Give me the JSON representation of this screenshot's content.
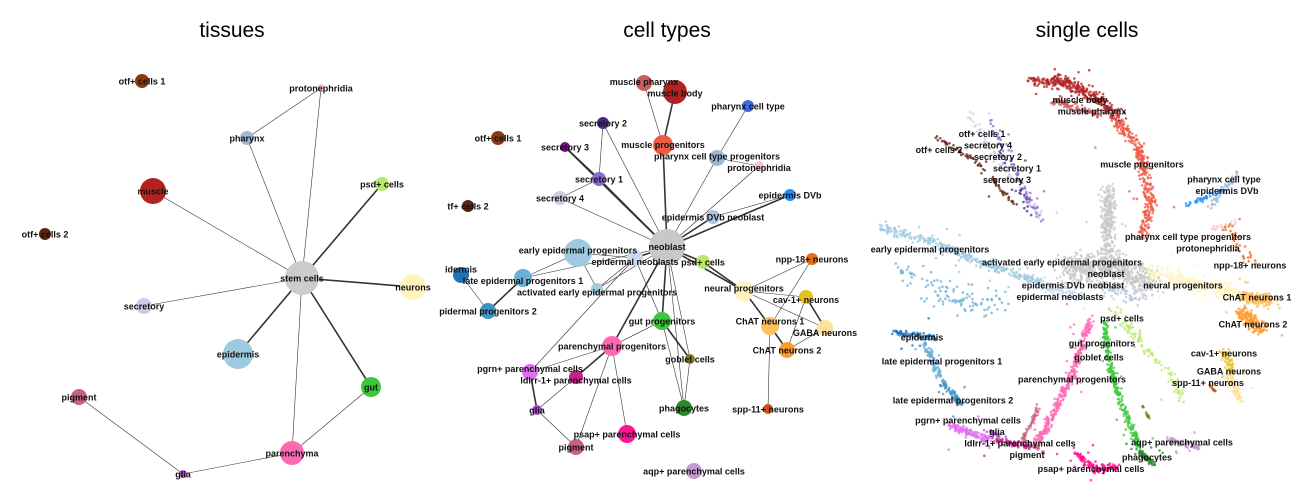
{
  "panels": {
    "tissues": {
      "title": "tissues",
      "nodes": [
        {
          "label": "otf+ cells 1",
          "color": "#8b3a0f"
        },
        {
          "label": "protonephridia",
          "color": "#ffc0cb"
        },
        {
          "label": "pharynx",
          "color": "#a0b8d4"
        },
        {
          "label": "muscle",
          "color": "#b22222"
        },
        {
          "label": "psd+ cells",
          "color": "#b8e86a"
        },
        {
          "label": "otf+ cells 2",
          "color": "#5c2310"
        },
        {
          "label": "stem cells",
          "color": "#cccccc"
        },
        {
          "label": "neurons",
          "color": "#fff3c0"
        },
        {
          "label": "secretory",
          "color": "#d0cce6"
        },
        {
          "label": "epidermis",
          "color": "#9ecae1"
        },
        {
          "label": "gut",
          "color": "#3cc83c"
        },
        {
          "label": "pigment",
          "color": "#c86080"
        },
        {
          "label": "parenchyma",
          "color": "#ff69b4"
        },
        {
          "label": "glia",
          "color": "#b050d0"
        }
      ],
      "edges": [
        [
          "stem cells",
          "pharynx",
          1
        ],
        [
          "stem cells",
          "protonephridia",
          1
        ],
        [
          "pharynx",
          "protonephridia",
          1
        ],
        [
          "stem cells",
          "muscle",
          1
        ],
        [
          "stem cells",
          "psd+ cells",
          2
        ],
        [
          "stem cells",
          "neurons",
          2
        ],
        [
          "stem cells",
          "secretory",
          1
        ],
        [
          "stem cells",
          "epidermis",
          2
        ],
        [
          "stem cells",
          "gut",
          2
        ],
        [
          "stem cells",
          "parenchyma",
          1
        ],
        [
          "gut",
          "parenchyma",
          1
        ],
        [
          "parenchyma",
          "glia",
          1
        ],
        [
          "glia",
          "pigment",
          1
        ]
      ]
    },
    "cell_types": {
      "title": "cell types",
      "nodes": [
        {
          "label": "muscle pharynx",
          "color": "#cd5c5c"
        },
        {
          "label": "muscle body",
          "color": "#b22222"
        },
        {
          "label": "pharynx cell type",
          "color": "#4169e1"
        },
        {
          "label": "secretory 2",
          "color": "#4b2a8a"
        },
        {
          "label": "otf+ cells 1",
          "color": "#8b3a0f"
        },
        {
          "label": "muscle progenitors",
          "color": "#ee5a45"
        },
        {
          "label": "secretory 3",
          "color": "#7a0b8a"
        },
        {
          "label": "pharynx cell type progenitors",
          "color": "#a0b8d4"
        },
        {
          "label": "protonephridia",
          "color": "#ffc0cb"
        },
        {
          "label": "secretory 1",
          "color": "#8c6bd0"
        },
        {
          "label": "secretory 4",
          "color": "#d0cce6"
        },
        {
          "label": "tf+ cells 2",
          "color": "#5c2310"
        },
        {
          "label": "epidermis DVb",
          "color": "#1e90ff"
        },
        {
          "label": "epidermis DVb neoblast",
          "color": "#b0c4de"
        },
        {
          "label": "neoblast",
          "color": "#c8c8c8"
        },
        {
          "label": "early epidermal progenitors",
          "color": "#9ecae1"
        },
        {
          "label": "epidermal neoblasts",
          "color": "#c6dbef"
        },
        {
          "label": "psd+ cells",
          "color": "#b8e86a"
        },
        {
          "label": "npp-18+ neurons",
          "color": "#e86a1a"
        },
        {
          "label": "idermis",
          "color": "#2171b5"
        },
        {
          "label": "late epidermal progenitors 1",
          "color": "#6baed6"
        },
        {
          "label": "activated early epidermal progenitors",
          "color": "#a8cad8"
        },
        {
          "label": "neural progenitors",
          "color": "#fff3c0"
        },
        {
          "label": "cav-1+ neurons",
          "color": "#e8c020"
        },
        {
          "label": "pidermal progenitors 2",
          "color": "#4292c6"
        },
        {
          "label": "gut progenitors",
          "color": "#3cc83c"
        },
        {
          "label": "ChAT neurons 1",
          "color": "#ffc060"
        },
        {
          "label": "GABA neurons",
          "color": "#ffe098"
        },
        {
          "label": "parenchymal progenitors",
          "color": "#ff69b4"
        },
        {
          "label": "ChAT neurons 2",
          "color": "#ff9a30"
        },
        {
          "label": "goblet cells",
          "color": "#808020"
        },
        {
          "label": "pgrn+ parenchymal cells",
          "color": "#e070f0"
        },
        {
          "label": "ldlrr-1+ parenchymal cells",
          "color": "#c8208a"
        },
        {
          "label": "glia",
          "color": "#b050d0"
        },
        {
          "label": "phagocytes",
          "color": "#2a8a2a"
        },
        {
          "label": "spp-11+ neurons",
          "color": "#c8501a"
        },
        {
          "label": "psap+ parenchymal cells",
          "color": "#ff1493"
        },
        {
          "label": "pigment",
          "color": "#c86080"
        },
        {
          "label": "aqp+ parenchymal cells",
          "color": "#c898d0"
        }
      ],
      "edges": [
        [
          "muscle pharynx",
          "muscle progenitors",
          1
        ],
        [
          "muscle body",
          "muscle progenitors",
          2
        ],
        [
          "muscle progenitors",
          "neoblast",
          2
        ],
        [
          "pharynx cell type",
          "pharynx cell type progenitors",
          1
        ],
        [
          "pharynx cell type progenitors",
          "neoblast",
          1
        ],
        [
          "protonephridia",
          "neoblast",
          1
        ],
        [
          "pharynx cell type progenitors",
          "protonephridia",
          1
        ],
        [
          "secretory 2",
          "secretory 1",
          1
        ],
        [
          "secretory 2",
          "neoblast",
          1
        ],
        [
          "secretory 3",
          "secretory 1",
          2
        ],
        [
          "secretory 3",
          "neoblast",
          2
        ],
        [
          "secretory 1",
          "neoblast",
          2
        ],
        [
          "secretory 4",
          "secretory 1",
          1
        ],
        [
          "secretory 4",
          "neoblast",
          1
        ],
        [
          "epidermis DVb",
          "epidermis DVb neoblast",
          1
        ],
        [
          "epidermis DVb",
          "neoblast",
          2
        ],
        [
          "epidermis DVb neoblast",
          "neoblast",
          2
        ],
        [
          "neoblast",
          "epidermal neoblasts",
          2
        ],
        [
          "neoblast",
          "psd+ cells",
          2
        ],
        [
          "neoblast",
          "neural progenitors",
          2
        ],
        [
          "neoblast",
          "gut progenitors",
          2
        ],
        [
          "neoblast",
          "parenchymal progenitors",
          2
        ],
        [
          "neoblast",
          "goblet cells",
          1
        ],
        [
          "neoblast",
          "phagocytes",
          1
        ],
        [
          "neoblast",
          "activated early epidermal progenitors",
          1
        ],
        [
          "neoblast",
          "late epidermal progenitors 1",
          1
        ],
        [
          "epidermal neoblasts",
          "early epidermal progenitors",
          1
        ],
        [
          "epidermal neoblasts",
          "activated early epidermal progenitors",
          1
        ],
        [
          "epidermal neoblasts",
          "pgrn+ parenchymal cells",
          1
        ],
        [
          "epidermal neoblasts",
          "gut progenitors",
          1
        ],
        [
          "early epidermal progenitors",
          "late epidermal progenitors 1",
          1
        ],
        [
          "early epidermal progenitors",
          "activated early epidermal progenitors",
          1
        ],
        [
          "late epidermal progenitors 1",
          "pidermal progenitors 2",
          2
        ],
        [
          "idermis",
          "pidermal progenitors 2",
          1
        ],
        [
          "psd+ cells",
          "neural progenitors",
          2
        ],
        [
          "neural progenitors",
          "npp-18+ neurons",
          1
        ],
        [
          "neural progenitors",
          "ChAT neurons 1",
          2
        ],
        [
          "neural progenitors",
          "GABA neurons",
          1
        ],
        [
          "neural progenitors",
          "cav-1+ neurons",
          1
        ],
        [
          "cav-1+ neurons",
          "GABA neurons",
          2
        ],
        [
          "cav-1+ neurons",
          "ChAT neurons 2",
          1
        ],
        [
          "ChAT neurons 1",
          "ChAT neurons 2",
          2
        ],
        [
          "ChAT neurons 2",
          "GABA neurons",
          1
        ],
        [
          "npp-18+ neurons",
          "ChAT neurons 1",
          1
        ],
        [
          "ChAT neurons 1",
          "spp-11+ neurons",
          1
        ],
        [
          "gut progenitors",
          "goblet cells",
          2
        ],
        [
          "gut progenitors",
          "phagocytes",
          1
        ],
        [
          "goblet cells",
          "phagocytes",
          1
        ],
        [
          "gut progenitors",
          "parenchymal progenitors",
          1
        ],
        [
          "parenchymal progenitors",
          "pgrn+ parenchymal cells",
          1
        ],
        [
          "parenchymal progenitors",
          "ldlrr-1+ parenchymal cells",
          2
        ],
        [
          "parenchymal progenitors",
          "psap+ parenchymal cells",
          1
        ],
        [
          "parenchymal progenitors",
          "pigment",
          1
        ],
        [
          "ldlrr-1+ parenchymal cells",
          "glia",
          1
        ],
        [
          "pgrn+ parenchymal cells",
          "glia",
          2
        ],
        [
          "glia",
          "pigment",
          1
        ]
      ]
    },
    "single_cells": {
      "title": "single cells",
      "labels": [
        "muscle body",
        "muscle pharynx",
        "otf+ cells 1",
        "otf+ cells 2",
        "secretory 4",
        "secretory 2",
        "secretory 3",
        "secretory 1",
        "muscle progenitors",
        "pharynx cell type",
        "epidermis DVb",
        "pharynx cell type progenitors",
        "protonephridia",
        "early epidermal progenitors",
        "activated early epidermal progenitors",
        "npp-18+ neurons",
        "neoblast",
        "epidermis DVb neoblast",
        "neural progenitors",
        "epidermal neoblasts",
        "ChAT neurons 1",
        "psd+ cells",
        "ChAT neurons 2",
        "epidermis",
        "gut progenitors",
        "cav-1+ neurons",
        "goblet cells",
        "late epidermal progenitors 1",
        "GABA neurons",
        "spp-11+ neurons",
        "parenchymal progenitors",
        "late epidermal progenitors 2",
        "pgrn+ parenchymal cells",
        "glia",
        "aqp+ parenchymal cells",
        "ldlrr-1+ parenchymal cells",
        "pigment",
        "phagocytes",
        "psap+ parenchymal cells"
      ]
    }
  }
}
